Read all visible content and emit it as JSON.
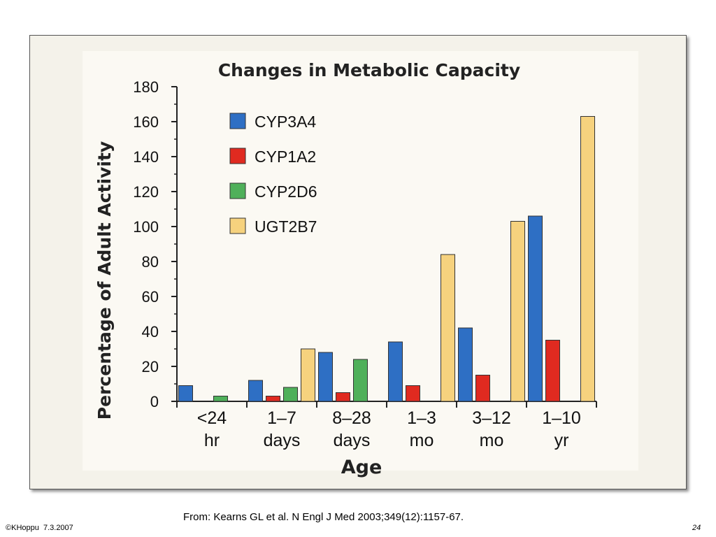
{
  "source": "From: Kearns GL et al. N Engl J Med 2003;349(12):1157-67.",
  "footer": {
    "left": "©KHoppu  7.3.2007",
    "page": "24"
  },
  "chart_data": {
    "type": "bar",
    "title": "Changes in Metabolic Capacity",
    "xlabel": "Age",
    "ylabel": "Percentage of Adult Activity",
    "ylim": [
      0,
      180
    ],
    "yticks": [
      0,
      20,
      40,
      60,
      80,
      100,
      120,
      140,
      160,
      180
    ],
    "categories": [
      [
        "<24",
        "hr"
      ],
      [
        "1–7",
        "days"
      ],
      [
        "8–28",
        "days"
      ],
      [
        "1–3",
        "mo"
      ],
      [
        "3–12",
        "mo"
      ],
      [
        "1–10",
        "yr"
      ]
    ],
    "legend_position": "top-left inside plot",
    "grid": false,
    "series": [
      {
        "name": "CYP3A4",
        "color": "#2e6fc4",
        "values": [
          9,
          12,
          28,
          34,
          42,
          106
        ]
      },
      {
        "name": "CYP1A2",
        "color": "#e02a20",
        "values": [
          0,
          3,
          5,
          9,
          15,
          35
        ]
      },
      {
        "name": "CYP2D6",
        "color": "#4fb05a",
        "values": [
          3,
          8,
          24,
          null,
          null,
          null
        ]
      },
      {
        "name": "UGT2B7",
        "color": "#f6d27e",
        "values": [
          null,
          30,
          null,
          84,
          103,
          163
        ]
      }
    ]
  }
}
